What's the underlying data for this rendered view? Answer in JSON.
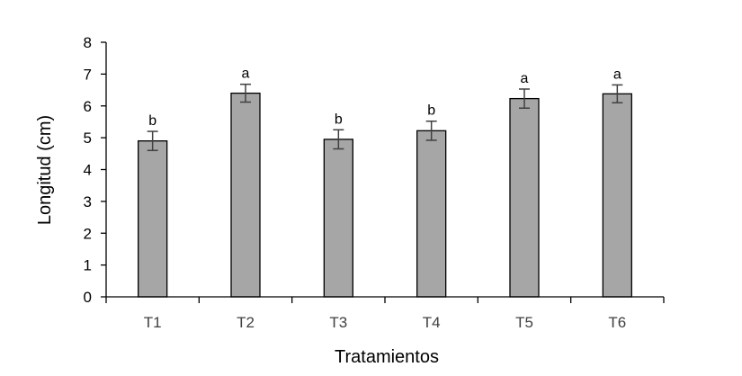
{
  "chart_data": {
    "type": "bar",
    "categories": [
      "T1",
      "T2",
      "T3",
      "T4",
      "T5",
      "T6"
    ],
    "values": [
      4.9,
      6.4,
      4.95,
      5.22,
      6.23,
      6.38
    ],
    "error": [
      0.3,
      0.28,
      0.3,
      0.3,
      0.3,
      0.28
    ],
    "significance": [
      "b",
      "a",
      "b",
      "b",
      "a",
      "a"
    ],
    "xlabel": "Tratamientos",
    "ylabel": "Longitud (cm)",
    "ylim": [
      0,
      8
    ],
    "yticks": [
      "0",
      "1",
      "2",
      "3",
      "4",
      "5",
      "6",
      "7",
      "8"
    ],
    "grid": false,
    "colors": {
      "bar_fill": "#a6a6a6",
      "bar_stroke": "#000000",
      "error_bar": "#404040",
      "axis": "#000000"
    }
  }
}
